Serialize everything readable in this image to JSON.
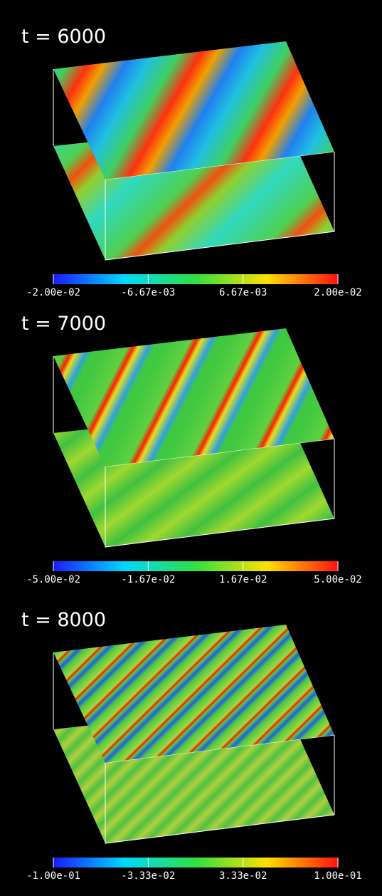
{
  "panels": [
    {
      "title": "t = 6000",
      "colorbar_labels": [
        "-2.00e-02",
        "-6.67e-03",
        "6.67e-03",
        "2.00e-02"
      ]
    },
    {
      "title": "t = 7000",
      "colorbar_labels": [
        "-5.00e-02",
        "-1.67e-02",
        "1.67e-02",
        "5.00e-02"
      ]
    },
    {
      "title": "t = 8000",
      "colorbar_labels": [
        "-1.00e-01",
        "-3.33e-02",
        "3.33e-02",
        "1.00e-01"
      ]
    }
  ]
}
